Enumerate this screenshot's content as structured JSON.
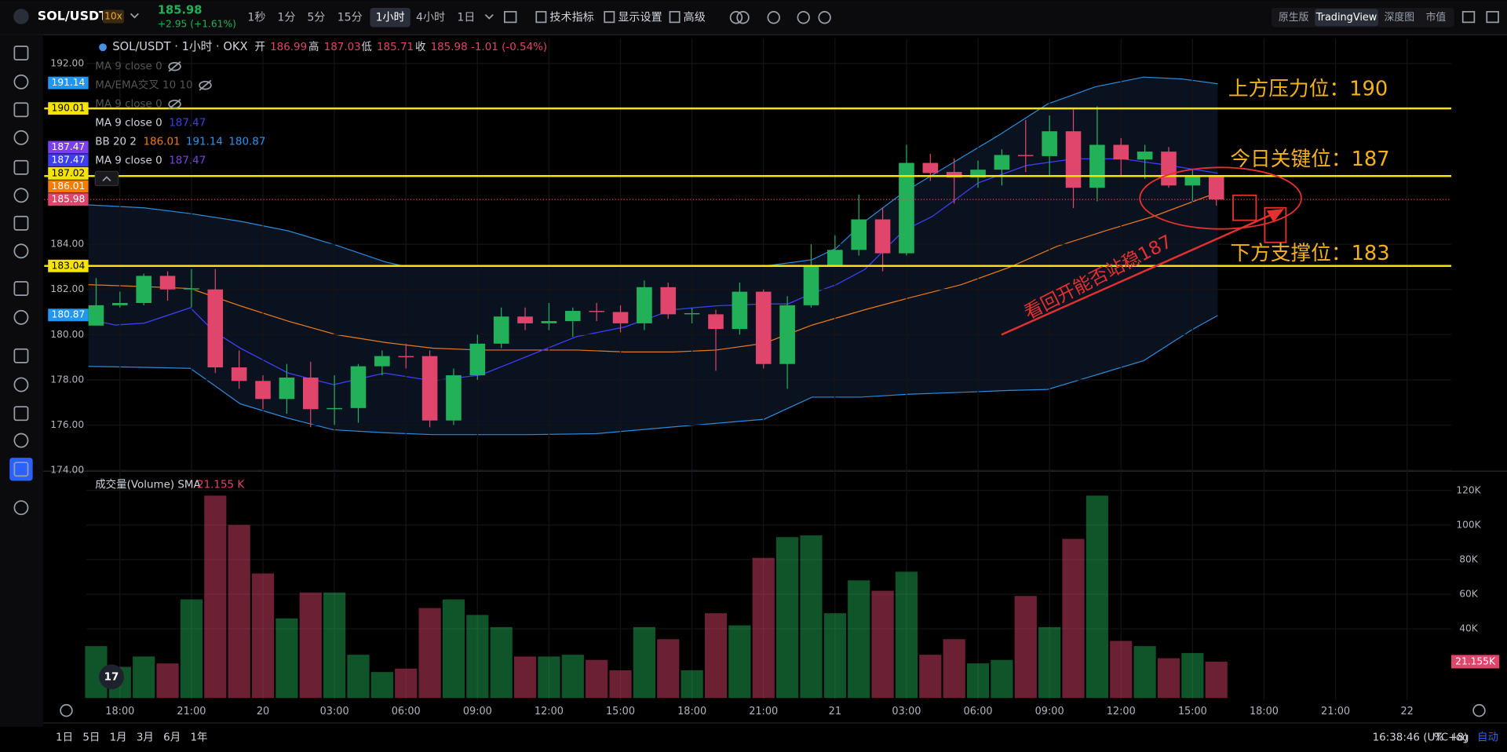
{
  "toolbar": {
    "symbol": "SOL/USDT",
    "leverage": "10x",
    "price": "185.98",
    "change": "+2.95 (+1.61%)",
    "intervals": [
      "1秒",
      "1分",
      "5分",
      "15分",
      "1小时",
      "4小时",
      "1日"
    ],
    "active_interval": "1小时",
    "tools": [
      "技术指标",
      "显示设置",
      "高级"
    ],
    "views": [
      "原生版",
      "TradingView",
      "深度图",
      "市值"
    ],
    "active_view": "TradingView"
  },
  "legend": {
    "title": "SOL/USDT · 1小时 · OKX",
    "ohlc": [
      {
        "label": "开",
        "value": "186.99"
      },
      {
        "label": "高",
        "value": "187.03"
      },
      {
        "label": "低",
        "value": "185.71"
      },
      {
        "label": "收",
        "value": "185.98"
      }
    ],
    "change": "-1.01 (-0.54%)"
  },
  "indicators": [
    {
      "name": "MA 9 close 0",
      "hidden": true
    },
    {
      "name": "MA/EMA交叉 10 10",
      "hidden": true
    },
    {
      "name": "MA 9 close 0",
      "hidden": true
    },
    {
      "name": "MA 9 close 0",
      "values": [
        "187.47"
      ],
      "colors": [
        "#3f3df0"
      ]
    },
    {
      "name": "BB 20 2",
      "values": [
        "186.01",
        "191.14",
        "180.87"
      ],
      "colors": [
        "#f57c00",
        "#2196f3",
        "#2196f3"
      ]
    },
    {
      "name": "MA 9 close 0",
      "values": [
        "187.47"
      ],
      "colors": [
        "#7b3ff0"
      ]
    }
  ],
  "chart": {
    "ylim": [
      174,
      193.1
    ],
    "yticks": [
      {
        "value": 192,
        "label": "192.00"
      },
      {
        "value": 184,
        "label": "184.00"
      },
      {
        "value": 182,
        "label": "182.00"
      },
      {
        "value": 180,
        "label": "180.00"
      },
      {
        "value": 178,
        "label": "178.00"
      },
      {
        "value": 176,
        "label": "176.00"
      },
      {
        "value": 174,
        "label": "174.00"
      }
    ],
    "up_color": "#22b158",
    "down_color": "#e0456b",
    "candles": {
      "open": [
        180.4,
        181.3,
        181.4,
        182.6,
        182.0,
        182.0,
        178.55,
        177.95,
        177.15,
        178.1,
        176.7,
        176.75,
        178.6,
        179.05,
        179.05,
        176.2,
        178.2,
        179.6,
        180.8,
        180.5,
        180.6,
        181.05,
        181.0,
        180.5,
        182.1,
        180.9,
        180.9,
        180.25,
        181.9,
        178.7,
        181.3,
        183.0,
        183.75,
        185.1,
        183.6,
        187.6,
        187.2,
        186.95,
        187.3,
        187.95,
        187.9,
        189.0,
        186.5,
        188.4,
        187.75,
        188.1,
        186.6,
        186.99
      ],
      "high": [
        182.5,
        181.9,
        182.7,
        182.8,
        182.9,
        182.9,
        179.3,
        178.2,
        178.7,
        178.8,
        178.2,
        178.7,
        179.3,
        179.6,
        179.3,
        178.5,
        180.0,
        181.2,
        181.2,
        181.4,
        181.2,
        181.4,
        181.3,
        182.4,
        182.3,
        181.2,
        181.1,
        182.3,
        182.0,
        181.7,
        184.0,
        184.4,
        186.2,
        185.6,
        188.4,
        188.0,
        187.8,
        187.7,
        188.2,
        189.5,
        189.7,
        190.0,
        190.1,
        188.7,
        188.4,
        188.3,
        187.3,
        187.03
      ],
      "low": [
        180.4,
        181.2,
        181.3,
        181.5,
        181.2,
        178.3,
        177.6,
        176.7,
        176.5,
        175.9,
        176.0,
        176.1,
        178.2,
        178.5,
        175.9,
        176.0,
        178.0,
        179.4,
        180.2,
        180.2,
        179.9,
        180.6,
        180.1,
        180.2,
        180.7,
        180.5,
        178.4,
        180.0,
        178.5,
        177.6,
        181.2,
        183.0,
        183.5,
        182.8,
        183.5,
        186.8,
        185.8,
        186.5,
        186.6,
        187.2,
        187.0,
        185.6,
        185.9,
        187.0,
        186.9,
        186.5,
        185.9,
        185.71
      ],
      "close": [
        181.3,
        181.4,
        182.6,
        182.0,
        182.05,
        178.55,
        177.95,
        177.15,
        178.1,
        176.7,
        176.75,
        178.6,
        179.05,
        179.0,
        176.2,
        178.2,
        179.6,
        180.8,
        180.5,
        180.6,
        181.05,
        181.0,
        180.5,
        182.1,
        180.9,
        180.95,
        180.25,
        181.9,
        178.7,
        181.3,
        183.0,
        183.75,
        185.1,
        183.6,
        187.6,
        187.15,
        186.95,
        187.3,
        187.95,
        187.9,
        189.0,
        186.5,
        188.4,
        187.75,
        188.1,
        186.6,
        187.0,
        185.98
      ]
    },
    "levels": [
      {
        "value": 190.01,
        "label": "190.01"
      },
      {
        "value": 187.02,
        "label": "187.02"
      },
      {
        "value": 183.04,
        "label": "183.04"
      }
    ],
    "level_color": "#f5e400",
    "price_labels": [
      {
        "value": 191.14,
        "label": "191.14",
        "color": "#2196f3"
      },
      {
        "value": 187.47,
        "label": "187.47",
        "color": "#3f3df0"
      },
      {
        "value": 187.47,
        "label": "187.47",
        "color": "#7b3ff0"
      },
      {
        "value": 186.01,
        "label": "186.01",
        "color": "#f57c00"
      },
      {
        "value": 180.87,
        "label": "180.87",
        "color": "#2196f3"
      }
    ],
    "current_price": {
      "value": 185.98,
      "label": "185.98",
      "color": "#e0456b"
    },
    "annotations": [
      "上方压力位：190",
      "今日关键位：187",
      "下方支撑位：183",
      "看回开能否站稳187"
    ]
  },
  "volume": {
    "title": "成交量(Volume) SMA",
    "sma": "21.155 K",
    "values": [
      30,
      18,
      24,
      20,
      57,
      117,
      100,
      72,
      46,
      61,
      61,
      25,
      15,
      17,
      52,
      57,
      48,
      41,
      24,
      24,
      25,
      22,
      16,
      41,
      34,
      16,
      49,
      42,
      81,
      93,
      94,
      49,
      68,
      62,
      73,
      25,
      34,
      20,
      22,
      59,
      41,
      92,
      117,
      33,
      30,
      23,
      26,
      21
    ],
    "ylim": [
      0,
      126.7
    ],
    "yticks": [
      {
        "value": 120,
        "label": "120K"
      },
      {
        "value": 100,
        "label": "100K"
      },
      {
        "value": 80,
        "label": "80K"
      },
      {
        "value": 60,
        "label": "60K"
      },
      {
        "value": 40,
        "label": "40K"
      }
    ],
    "last_label": "21.155K"
  },
  "time_labels": [
    "18:00",
    "21:00",
    "20",
    "03:00",
    "06:00",
    "09:00",
    "12:00",
    "15:00",
    "18:00",
    "21:00",
    "21",
    "03:00",
    "06:00",
    "09:00",
    "12:00",
    "15:00",
    "18:00",
    "21:00",
    "22"
  ],
  "footer": {
    "ranges": [
      "1日",
      "5日",
      "1月",
      "3月",
      "6月",
      "1年"
    ],
    "clock": "16:38:46 (UTC+8)",
    "options": [
      "%",
      "log",
      "自动"
    ]
  }
}
